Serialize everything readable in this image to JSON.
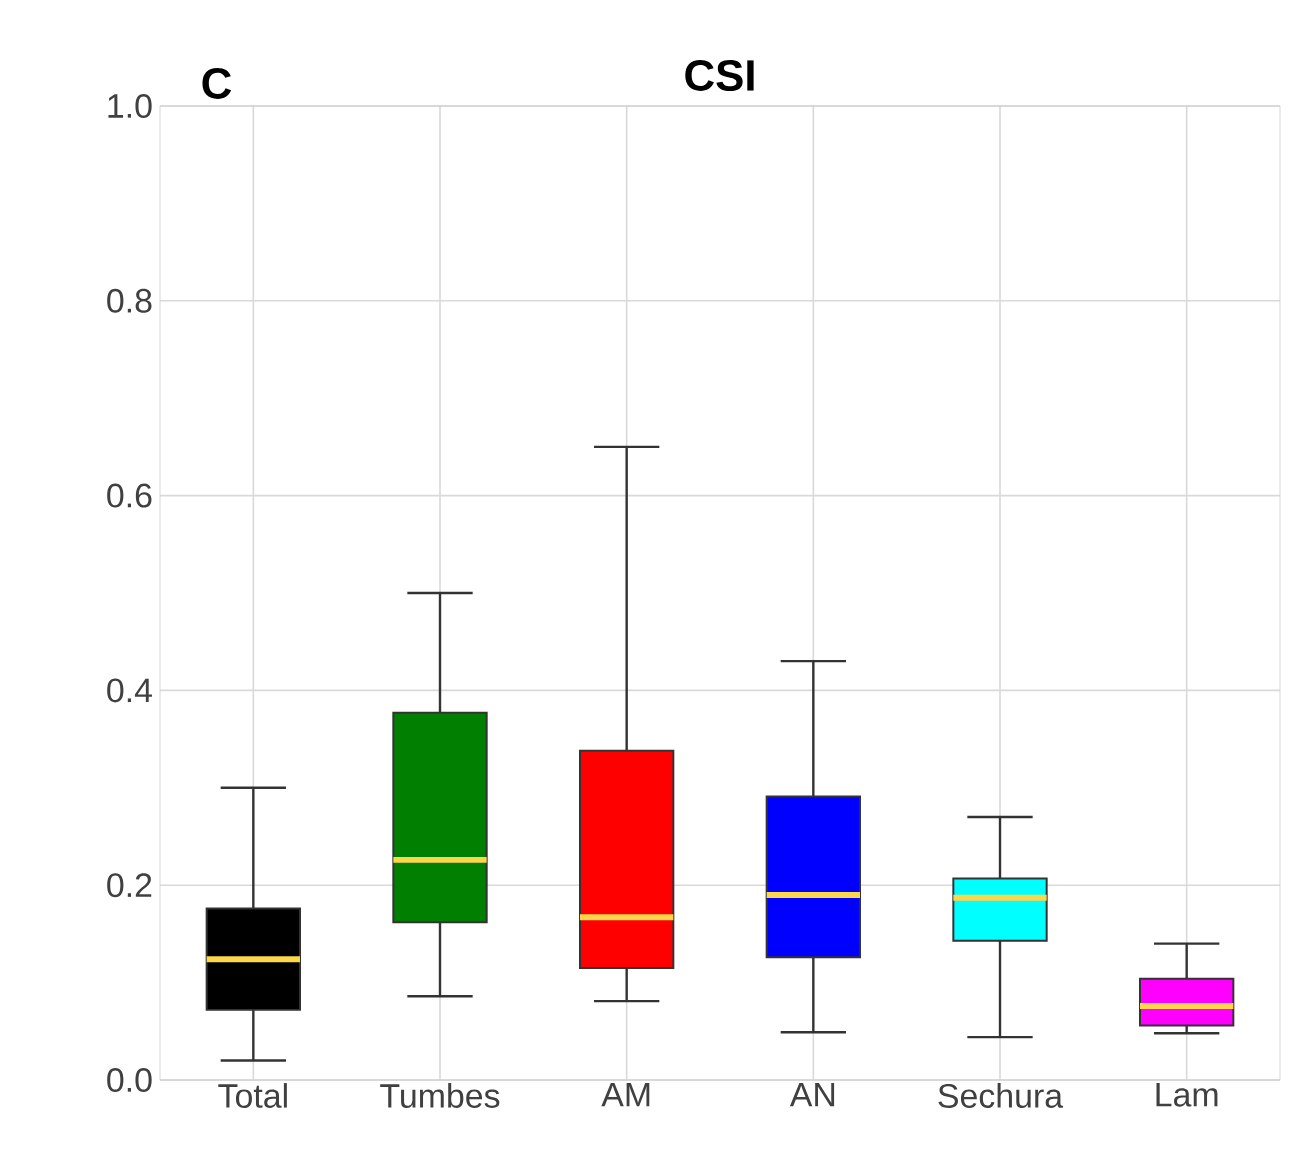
{
  "chart_data": {
    "type": "box",
    "title": "CSI",
    "annotations": [
      "C"
    ],
    "categories": [
      "Total",
      "Tumbes",
      "AM",
      "AN",
      "Sechura",
      "Lam"
    ],
    "colors": [
      "#000000",
      "#007f00",
      "#ff0000",
      "#0000ff",
      "#00ffff",
      "#ff00ff"
    ],
    "boxes": [
      {
        "low": 0.02,
        "q1": 0.072,
        "median": 0.124,
        "q3": 0.176,
        "high": 0.3
      },
      {
        "low": 0.086,
        "q1": 0.162,
        "median": 0.226,
        "q3": 0.377,
        "high": 0.5
      },
      {
        "low": 0.081,
        "q1": 0.115,
        "median": 0.167,
        "q3": 0.338,
        "high": 0.65
      },
      {
        "low": 0.049,
        "q1": 0.126,
        "median": 0.19,
        "q3": 0.291,
        "high": 0.43
      },
      {
        "low": 0.044,
        "q1": 0.143,
        "median": 0.187,
        "q3": 0.207,
        "high": 0.27
      },
      {
        "low": 0.048,
        "q1": 0.056,
        "median": 0.076,
        "q3": 0.104,
        "high": 0.14
      }
    ],
    "ylim": [
      0,
      1
    ],
    "yticks": [
      {
        "value": 0,
        "label": "0.0"
      },
      {
        "value": 0.2,
        "label": "0.2"
      },
      {
        "value": 0.4,
        "label": "0.4"
      },
      {
        "value": 0.6,
        "label": "0.6"
      },
      {
        "value": 0.8,
        "label": "0.8"
      },
      {
        "value": 1,
        "label": "1.0"
      }
    ],
    "grid": true
  }
}
